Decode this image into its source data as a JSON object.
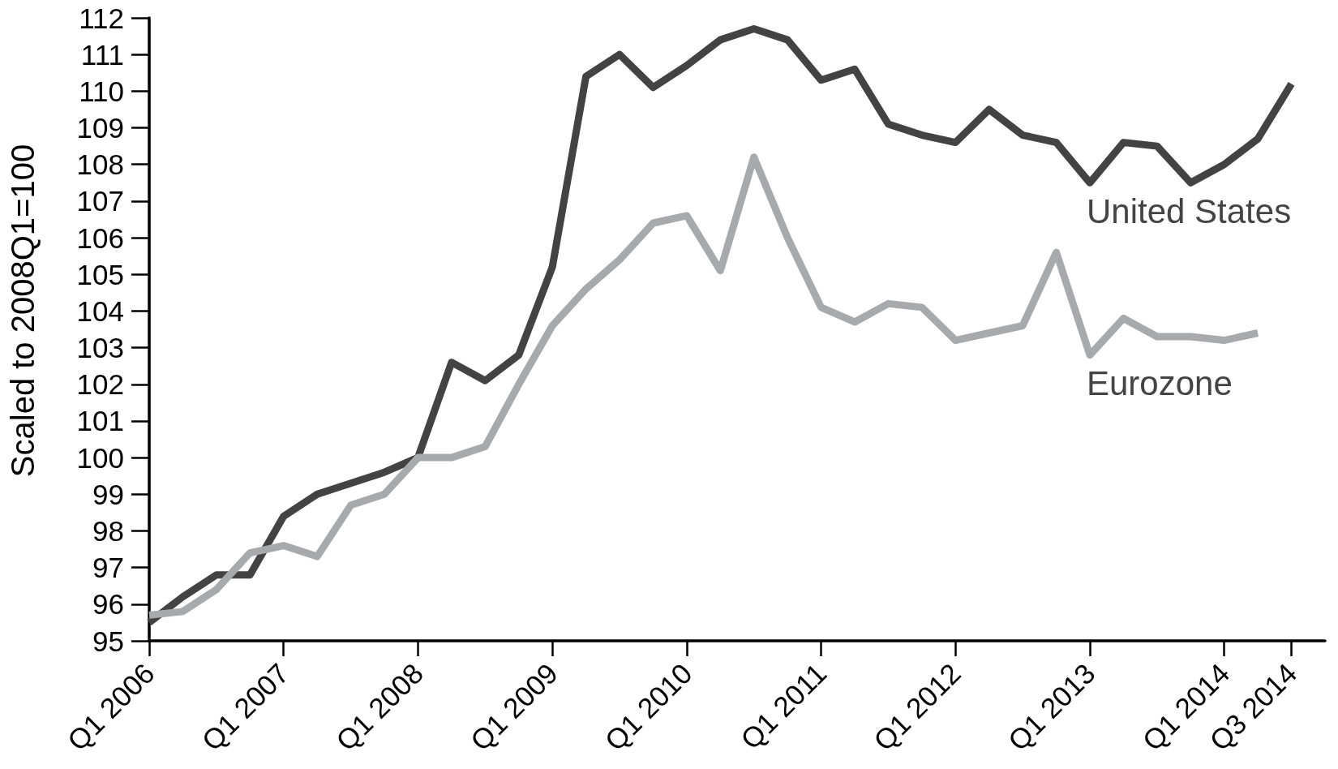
{
  "chart_data": {
    "type": "line",
    "ylabel": "Scaled to 2008Q1=100",
    "categories": [
      "Q1 2006",
      null,
      null,
      null,
      "Q1 2007",
      null,
      null,
      null,
      "Q1 2008",
      null,
      null,
      null,
      "Q1 2009",
      null,
      null,
      null,
      "Q1 2010",
      null,
      null,
      null,
      "Q1 2011",
      null,
      null,
      null,
      "Q1 2012",
      null,
      null,
      null,
      "Q1 2013",
      null,
      null,
      null,
      "Q1 2014",
      null,
      "Q3 2014"
    ],
    "series": [
      {
        "name": "United States",
        "color": "#434343",
        "values": [
          95.5,
          96.2,
          96.8,
          96.8,
          98.4,
          99.0,
          99.3,
          99.6,
          100.0,
          102.6,
          102.1,
          102.8,
          105.2,
          110.4,
          111.0,
          110.1,
          110.7,
          111.4,
          111.7,
          111.4,
          110.3,
          110.6,
          109.1,
          108.8,
          108.6,
          109.5,
          108.8,
          108.6,
          107.5,
          108.6,
          108.5,
          107.5,
          108.0,
          108.7,
          110.2
        ]
      },
      {
        "name": "Eurozone",
        "color": "#a7a9ac",
        "values": [
          95.7,
          95.8,
          96.4,
          97.4,
          97.6,
          97.3,
          98.7,
          99.0,
          100.0,
          100.0,
          100.3,
          102.0,
          103.6,
          104.6,
          105.4,
          106.4,
          106.6,
          105.1,
          108.2,
          106.0,
          104.1,
          103.7,
          104.2,
          104.1,
          103.2,
          103.4,
          103.6,
          105.6,
          102.8,
          103.8,
          103.3,
          103.3,
          103.2,
          103.4,
          null
        ]
      }
    ],
    "ylim": [
      95,
      112
    ],
    "yticks": [
      95,
      96,
      97,
      98,
      99,
      100,
      101,
      102,
      103,
      104,
      105,
      106,
      107,
      108,
      109,
      110,
      111,
      112
    ],
    "grid": false,
    "legend": false,
    "marker": "none",
    "line_style": "solid"
  }
}
